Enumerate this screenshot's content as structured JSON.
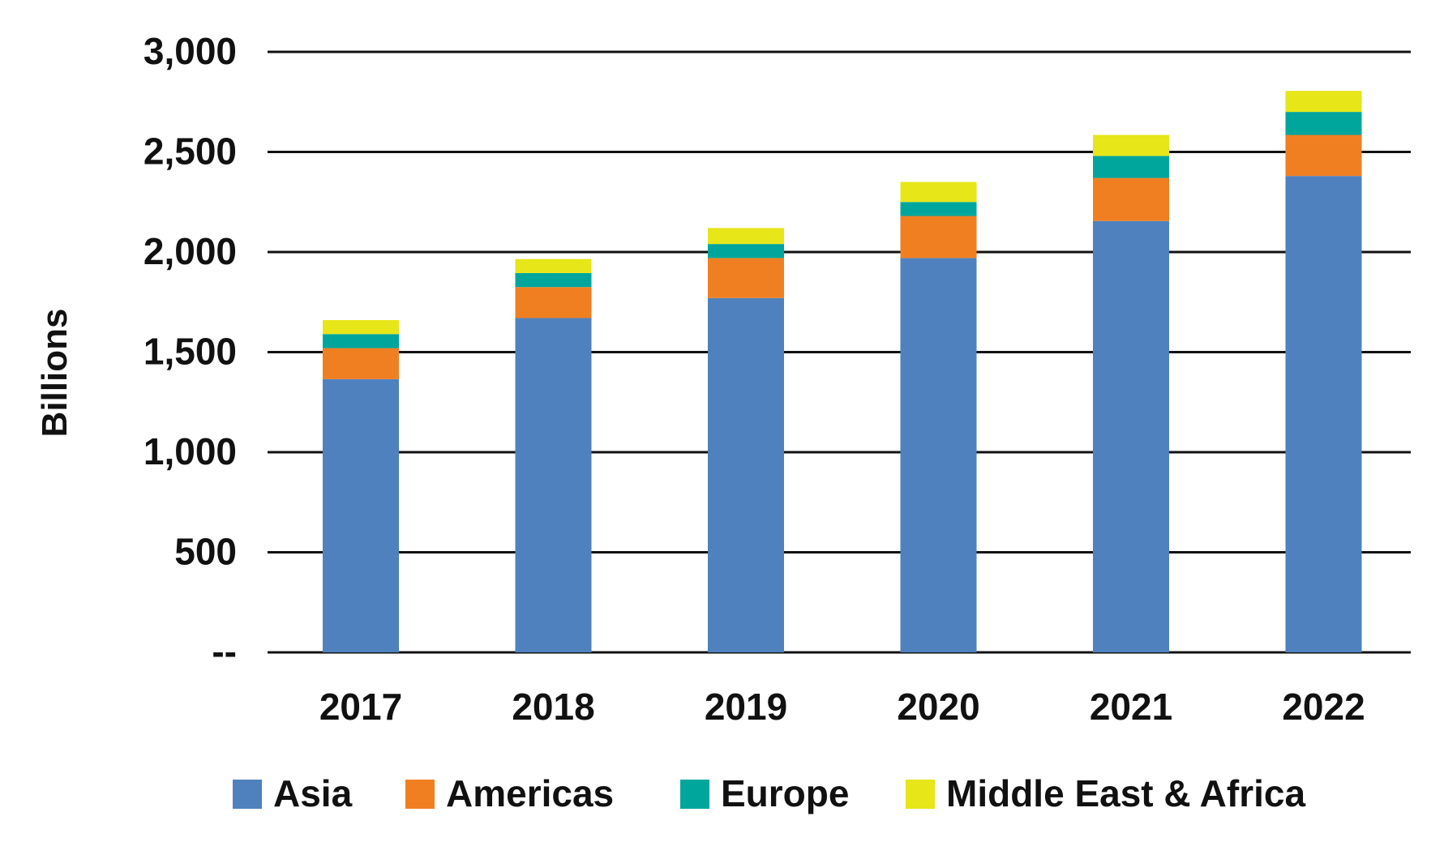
{
  "chart_data": {
    "type": "bar",
    "stacked": true,
    "categories": [
      "2017",
      "2018",
      "2019",
      "2020",
      "2021",
      "2022"
    ],
    "series": [
      {
        "name": "Asia",
        "color": "#4e81be",
        "values": [
          1365,
          1670,
          1770,
          1970,
          2155,
          2380
        ]
      },
      {
        "name": "Americas",
        "color": "#f07f22",
        "values": [
          155,
          155,
          200,
          210,
          215,
          205
        ]
      },
      {
        "name": "Europe",
        "color": "#00a69c",
        "values": [
          70,
          70,
          70,
          70,
          110,
          115
        ]
      },
      {
        "name": "Middle East & Africa",
        "color": "#e6e619",
        "values": [
          70,
          70,
          80,
          100,
          105,
          105
        ]
      }
    ],
    "xlabel": "",
    "ylabel": "Billions",
    "ylim": [
      0,
      3000
    ],
    "yticks": [
      0,
      500,
      1000,
      1500,
      2000,
      2500,
      3000
    ],
    "ytick_labels": [
      "--",
      "500",
      "1,000",
      "1,500",
      "2,000",
      "2,500",
      "3,000"
    ],
    "grid": true,
    "legend_position": "bottom"
  }
}
